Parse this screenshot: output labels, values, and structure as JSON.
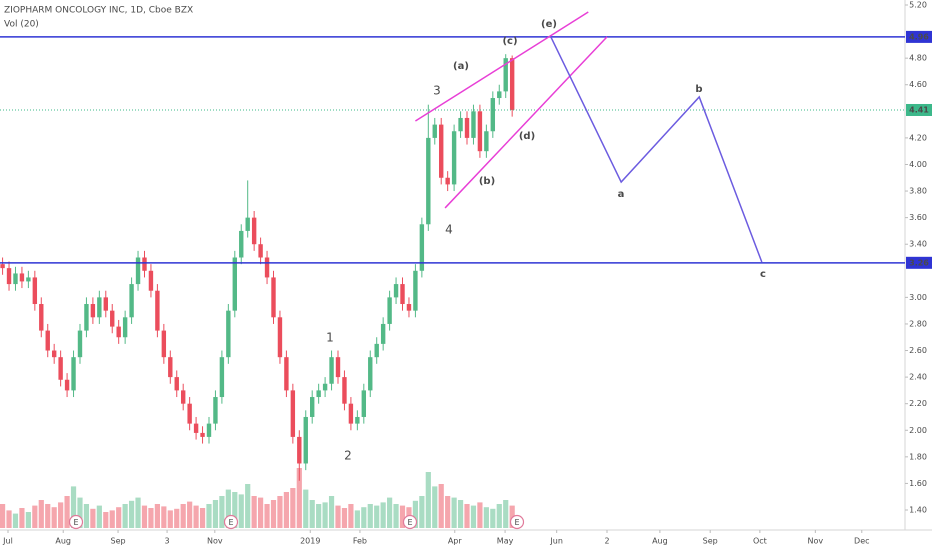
{
  "chart_data": {
    "type": "candlestick",
    "title": "ZIOPHARM ONCOLOGY INC, 1D, Cboe BZX",
    "subtitle": "Vol (20)",
    "up_color": "#53b987",
    "down_color": "#eb4d5c",
    "open": [
      3.25,
      3.22,
      3.1,
      3.18,
      3.12,
      3.15,
      2.95,
      2.75,
      2.6,
      2.55,
      2.38,
      2.3,
      2.55,
      2.75,
      2.95,
      2.85,
      3.0,
      2.9,
      2.78,
      2.7,
      2.85,
      3.1,
      3.3,
      3.2,
      3.05,
      2.75,
      2.55,
      2.4,
      2.3,
      2.2,
      2.05,
      1.98,
      1.95,
      2.05,
      2.25,
      2.55,
      2.9,
      3.3,
      3.5,
      3.6,
      3.4,
      3.3,
      3.15,
      2.85,
      2.55,
      2.3,
      1.95,
      1.75,
      2.1,
      2.25,
      2.3,
      2.35,
      2.55,
      2.4,
      2.2,
      2.05,
      2.1,
      2.3,
      2.55,
      2.65,
      2.8,
      3.0,
      3.1,
      2.95,
      2.9,
      3.2,
      3.55,
      4.2,
      4.3,
      3.9,
      3.85,
      4.25,
      4.35,
      4.2,
      4.4,
      4.1,
      4.25,
      4.5,
      4.55,
      4.8
    ],
    "high": [
      3.3,
      3.27,
      3.23,
      3.23,
      3.2,
      3.2,
      3.0,
      2.8,
      2.65,
      2.6,
      2.43,
      2.6,
      2.8,
      3.0,
      3.0,
      3.05,
      3.05,
      2.95,
      2.83,
      2.9,
      3.15,
      3.35,
      3.35,
      3.25,
      3.1,
      2.8,
      2.6,
      2.45,
      2.35,
      2.25,
      2.1,
      2.03,
      2.1,
      2.3,
      2.6,
      2.95,
      3.35,
      3.55,
      3.88,
      3.65,
      3.45,
      3.35,
      3.2,
      2.9,
      2.6,
      2.35,
      2.0,
      2.15,
      2.3,
      2.35,
      2.4,
      2.6,
      2.6,
      2.45,
      2.25,
      2.15,
      2.35,
      2.6,
      2.7,
      2.85,
      3.05,
      3.15,
      3.15,
      3.0,
      3.25,
      3.6,
      4.45,
      4.35,
      4.35,
      3.95,
      4.3,
      4.4,
      4.4,
      4.45,
      4.45,
      4.3,
      4.55,
      4.6,
      4.83,
      4.82
    ],
    "low": [
      3.17,
      3.05,
      3.05,
      3.07,
      3.07,
      2.9,
      2.7,
      2.55,
      2.5,
      2.33,
      2.25,
      2.25,
      2.5,
      2.7,
      2.8,
      2.8,
      2.85,
      2.73,
      2.65,
      2.65,
      2.8,
      3.05,
      3.15,
      3.0,
      2.7,
      2.5,
      2.35,
      2.25,
      2.15,
      2.0,
      1.93,
      1.9,
      1.9,
      2.0,
      2.2,
      2.5,
      2.85,
      3.25,
      3.45,
      3.35,
      3.25,
      3.1,
      2.8,
      2.5,
      2.25,
      1.9,
      1.62,
      1.7,
      2.05,
      2.2,
      2.25,
      2.3,
      2.35,
      2.15,
      2.0,
      2.0,
      2.05,
      2.25,
      2.5,
      2.6,
      2.75,
      2.95,
      2.9,
      2.85,
      2.85,
      3.15,
      3.5,
      4.15,
      3.85,
      3.8,
      3.8,
      4.2,
      4.15,
      4.15,
      4.05,
      4.05,
      4.2,
      4.45,
      4.5,
      4.36
    ],
    "close": [
      3.22,
      3.1,
      3.18,
      3.12,
      3.15,
      2.95,
      2.75,
      2.6,
      2.55,
      2.38,
      2.3,
      2.55,
      2.75,
      2.95,
      2.85,
      3.0,
      2.9,
      2.78,
      2.7,
      2.85,
      3.1,
      3.3,
      3.2,
      3.05,
      2.75,
      2.55,
      2.4,
      2.3,
      2.2,
      2.05,
      1.98,
      1.95,
      2.05,
      2.25,
      2.55,
      2.9,
      3.3,
      3.5,
      3.6,
      3.4,
      3.3,
      3.15,
      2.85,
      2.55,
      2.3,
      1.95,
      1.75,
      2.1,
      2.25,
      2.3,
      2.35,
      2.55,
      2.4,
      2.2,
      2.05,
      2.1,
      2.3,
      2.55,
      2.65,
      2.8,
      3.0,
      3.1,
      2.95,
      2.9,
      3.2,
      3.55,
      4.2,
      4.3,
      3.9,
      3.85,
      4.25,
      4.35,
      4.2,
      4.4,
      4.1,
      4.25,
      4.5,
      4.55,
      4.8,
      4.41
    ],
    "volume": [
      30,
      22,
      18,
      25,
      20,
      28,
      35,
      30,
      26,
      32,
      40,
      52,
      38,
      30,
      24,
      28,
      20,
      22,
      26,
      30,
      34,
      38,
      28,
      25,
      30,
      27,
      22,
      24,
      30,
      33,
      28,
      25,
      30,
      35,
      40,
      48,
      45,
      42,
      55,
      40,
      38,
      30,
      35,
      40,
      45,
      50,
      75,
      48,
      35,
      30,
      32,
      40,
      28,
      25,
      30,
      22,
      26,
      30,
      28,
      32,
      38,
      30,
      28,
      26,
      34,
      40,
      70,
      52,
      55,
      40,
      38,
      35,
      30,
      28,
      32,
      26,
      24,
      30,
      35,
      28
    ],
    "vlim": [
      0,
      100
    ],
    "xlim": [
      -0.4,
      139.9
    ],
    "xticks": [
      {
        "value": 0.84,
        "label": "Jul"
      },
      {
        "value": 9.4,
        "label": "Aug"
      },
      {
        "value": 17.9,
        "label": "Sep"
      },
      {
        "value": 25.5,
        "label": "3"
      },
      {
        "value": 32.9,
        "label": "Nov"
      },
      {
        "value": 47.7,
        "label": "2019"
      },
      {
        "value": 55.4,
        "label": "Feb"
      },
      {
        "value": 70.1,
        "label": "Apr"
      },
      {
        "value": 77.9,
        "label": "May"
      },
      {
        "value": 85.9,
        "label": "Jun"
      },
      {
        "value": 93.7,
        "label": "2"
      },
      {
        "value": 101.9,
        "label": "Aug"
      },
      {
        "value": 109.7,
        "label": "Sep"
      },
      {
        "value": 117.4,
        "label": "Oct"
      },
      {
        "value": 126,
        "label": "Nov"
      },
      {
        "value": 133.2,
        "label": "Dec"
      }
    ],
    "ylim": [
      1.4,
      5.2
    ],
    "yticks": [
      {
        "value": 5.2,
        "label": "5.20"
      },
      {
        "value": 4.8,
        "label": "4.80"
      },
      {
        "value": 4.6,
        "label": "4.60"
      },
      {
        "value": 4.2,
        "label": "4.20"
      },
      {
        "value": 4.0,
        "label": "4.00"
      },
      {
        "value": 3.8,
        "label": "3.80"
      },
      {
        "value": 3.6,
        "label": "3.60"
      },
      {
        "value": 3.4,
        "label": "3.40"
      },
      {
        "value": 3.0,
        "label": "3.00"
      },
      {
        "value": 2.8,
        "label": "2.80"
      },
      {
        "value": 2.6,
        "label": "2.60"
      },
      {
        "value": 2.4,
        "label": "2.40"
      },
      {
        "value": 2.2,
        "label": "2.20"
      },
      {
        "value": 2.0,
        "label": "2.00"
      },
      {
        "value": 1.8,
        "label": "1.80"
      },
      {
        "value": 1.6,
        "label": "1.60"
      },
      {
        "value": 1.4,
        "label": "1.40"
      }
    ],
    "levels": [
      {
        "value": 4.96,
        "label": "4.96",
        "color": "#2f34d4",
        "style": "solid"
      },
      {
        "value": 4.41,
        "label": "4.41",
        "color": "#3cb88a",
        "style": "dotted"
      },
      {
        "value": 3.26,
        "label": "3.26",
        "color": "#2f34d4",
        "style": "solid"
      }
    ],
    "drawings": [
      {
        "color": "#e83fd6",
        "x": [
          64.0,
          90.8
        ],
        "values": [
          4.327,
          5.147
        ]
      },
      {
        "color": "#e83fd6",
        "x": [
          68.6,
          93.7
        ],
        "values": [
          3.673,
          4.96
        ]
      },
      {
        "color": "#6c5ce0",
        "x": [
          85.0,
          95.9,
          108.0,
          117.7
        ],
        "values": [
          4.96,
          3.868,
          4.508,
          3.266
        ]
      }
    ],
    "annotations": [
      {
        "text": "1",
        "color": "#1c1c8c"
      },
      {
        "text": "2",
        "color": "#1c1c8c"
      },
      {
        "text": "3",
        "color": "#1c1c8c"
      },
      {
        "text": "4",
        "color": "#1c1c8c"
      },
      {
        "text": "(a)",
        "color": "#c8901a"
      },
      {
        "text": "(b)",
        "color": "#c8901a"
      },
      {
        "text": "(c)",
        "color": "#c8901a"
      },
      {
        "text": "(d)",
        "color": "#c8901a"
      },
      {
        "text": "(e)",
        "color": "#c8901a"
      },
      {
        "text": "a",
        "color": "#1c1c8c"
      },
      {
        "text": "b",
        "color": "#1c1c8c"
      },
      {
        "text": "c",
        "color": "#1c1c8c"
      }
    ],
    "events": [
      "E",
      "E",
      "E",
      "E"
    ]
  }
}
